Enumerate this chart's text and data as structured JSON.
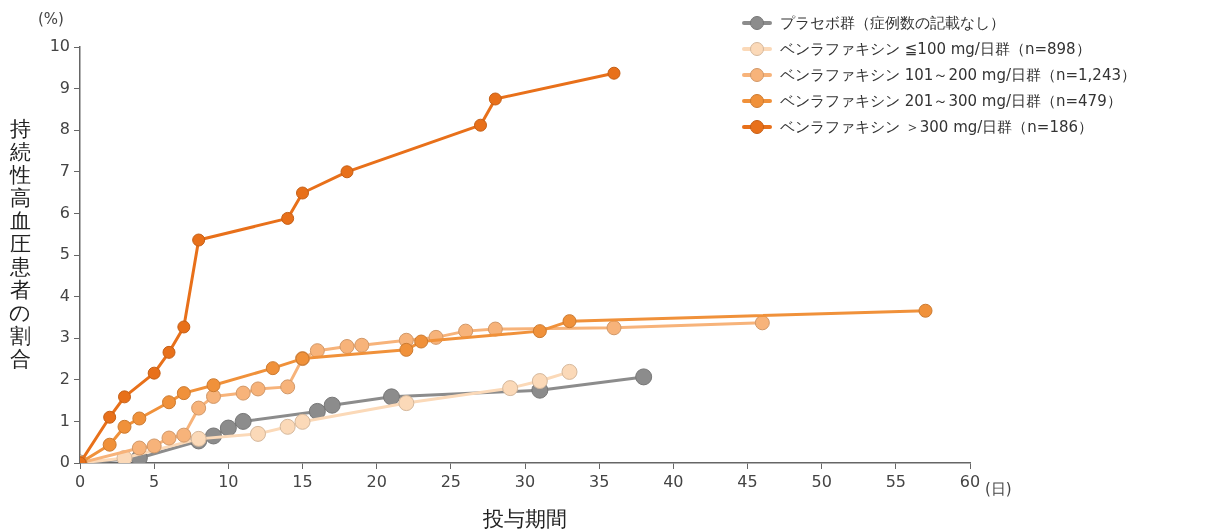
{
  "chart_data": {
    "type": "line",
    "xlabel": "投与期間",
    "ylabel": "持続性高血圧患者の割合",
    "annotations": [
      "(%)",
      "(日)"
    ],
    "xlim": [
      0,
      60
    ],
    "xticks": [
      0,
      5,
      10,
      15,
      20,
      25,
      30,
      35,
      40,
      45,
      50,
      55,
      60
    ],
    "ylim": [
      0,
      10
    ],
    "yticks": [
      0,
      1,
      2,
      3,
      4,
      5,
      6,
      7,
      8,
      9,
      10
    ],
    "grid": false,
    "legend": "top right",
    "marker": "circle",
    "line_style": "solid",
    "series": [
      {
        "name": "プラセボ群（症例数の記載なし）",
        "color": "#8c8c8c",
        "x": [
          0,
          4,
          8,
          9,
          10,
          11,
          16,
          17,
          21,
          31,
          38
        ],
        "values": [
          0,
          0.12,
          0.53,
          0.65,
          0.84,
          1.0,
          1.24,
          1.39,
          1.59,
          1.75,
          2.07
        ]
      },
      {
        "name": "ベンラファキシン ≦100 mg/日群（n=898）",
        "color": "#fbd9b8",
        "x": [
          0,
          3,
          8,
          12,
          14,
          15,
          22,
          29,
          31,
          33
        ],
        "values": [
          0,
          0.12,
          0.58,
          0.7,
          0.87,
          0.99,
          1.44,
          1.8,
          1.97,
          2.19
        ]
      },
      {
        "name": "ベンラファキシン 101～200 mg/日群（n=1,243）",
        "color": "#f7b37a",
        "x": [
          0,
          4,
          5,
          6,
          7,
          8,
          9,
          11,
          12,
          14,
          15,
          16,
          18,
          19,
          22,
          24,
          26,
          28,
          36,
          46
        ],
        "values": [
          0,
          0.36,
          0.41,
          0.6,
          0.67,
          1.32,
          1.6,
          1.68,
          1.78,
          1.83,
          2.51,
          2.7,
          2.8,
          2.83,
          2.95,
          3.02,
          3.17,
          3.22,
          3.25,
          3.37
        ]
      },
      {
        "name": "ベンラファキシン 201～300 mg/日群（n=479）",
        "color": "#f0913a",
        "x": [
          0,
          2,
          3,
          4,
          6,
          7,
          9,
          13,
          15,
          22,
          23,
          31,
          33,
          57
        ],
        "values": [
          0,
          0.44,
          0.87,
          1.07,
          1.46,
          1.68,
          1.87,
          2.28,
          2.51,
          2.72,
          2.92,
          3.17,
          3.41,
          3.66
        ]
      },
      {
        "name": "ベンラファキシン ＞300 mg/日群（n=186）",
        "color": "#e8701a",
        "x": [
          0,
          2,
          3,
          5,
          6,
          7,
          8,
          14,
          15,
          18,
          27,
          28,
          36
        ],
        "values": [
          0,
          1.1,
          1.59,
          2.16,
          2.66,
          3.27,
          5.36,
          5.88,
          6.49,
          7.0,
          8.12,
          8.75,
          9.37
        ]
      }
    ]
  }
}
